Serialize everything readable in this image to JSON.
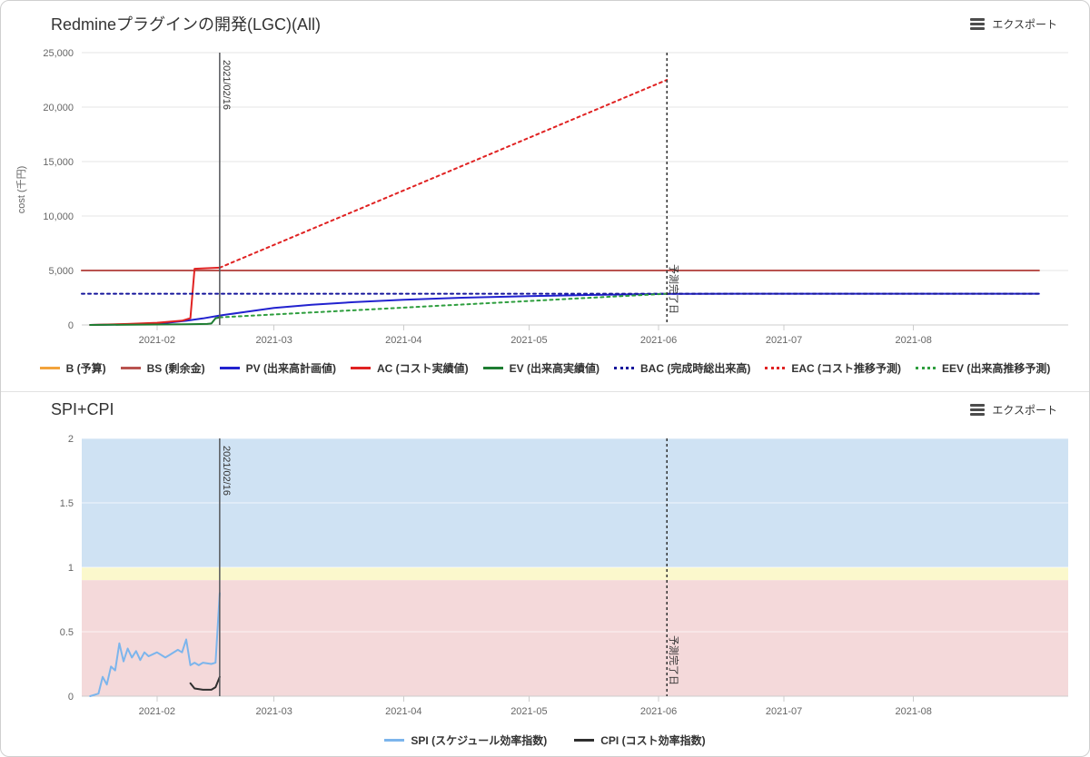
{
  "chart_data": [
    {
      "type": "line",
      "title": "Redmineプラグインの開発(LGC)(All)",
      "export_label": "エクスポート",
      "ylabel": "cost (千円)",
      "ylim": [
        0,
        25000
      ],
      "yticks": [
        {
          "v": 0,
          "label": "0"
        },
        {
          "v": 5000,
          "label": "5,000"
        },
        {
          "v": 10000,
          "label": "10,000"
        },
        {
          "v": 15000,
          "label": "15,000"
        },
        {
          "v": 20000,
          "label": "20,000"
        },
        {
          "v": 25000,
          "label": "25,000"
        }
      ],
      "xlim": [
        "2021-01-14",
        "2021-09-07"
      ],
      "xticks": [
        {
          "d": "2021-02-01",
          "label": "2021-02"
        },
        {
          "d": "2021-03-01",
          "label": "2021-03"
        },
        {
          "d": "2021-04-01",
          "label": "2021-04"
        },
        {
          "d": "2021-05-01",
          "label": "2021-05"
        },
        {
          "d": "2021-06-01",
          "label": "2021-06"
        },
        {
          "d": "2021-07-01",
          "label": "2021-07"
        },
        {
          "d": "2021-08-01",
          "label": "2021-08"
        }
      ],
      "plot_lines": [
        {
          "d": "2021-02-16",
          "label": "2021/02/16",
          "dash": "solid",
          "color": "#55575a",
          "label_anchor": "top"
        },
        {
          "d": "2021-06-03",
          "label": "予測完了日",
          "dash": "dotted",
          "color": "#333333",
          "label_anchor": "bottom"
        }
      ],
      "series": [
        {
          "key": "b",
          "name": "B (予算)",
          "color": "#f2a33c",
          "dash": "solid",
          "points": [
            [
              "2021-01-14",
              5000
            ],
            [
              "2021-08-31",
              5000
            ]
          ]
        },
        {
          "key": "bs",
          "name": "BS (剰余金)",
          "color": "#b9534f",
          "dash": "solid",
          "points": [
            [
              "2021-01-14",
              5000
            ],
            [
              "2021-08-31",
              5000
            ]
          ]
        },
        {
          "key": "pv",
          "name": "PV (出来高計画値)",
          "color": "#2222cf",
          "dash": "solid",
          "points": [
            [
              "2021-01-16",
              0
            ],
            [
              "2021-01-22",
              30
            ],
            [
              "2021-02-01",
              110
            ],
            [
              "2021-02-08",
              380
            ],
            [
              "2021-02-12",
              600
            ],
            [
              "2021-02-16",
              870
            ],
            [
              "2021-02-22",
              1180
            ],
            [
              "2021-03-01",
              1560
            ],
            [
              "2021-03-10",
              1860
            ],
            [
              "2021-03-20",
              2090
            ],
            [
              "2021-04-01",
              2310
            ],
            [
              "2021-04-15",
              2500
            ],
            [
              "2021-05-01",
              2650
            ],
            [
              "2021-05-15",
              2750
            ],
            [
              "2021-06-03",
              2850
            ],
            [
              "2021-06-20",
              2865
            ],
            [
              "2021-08-31",
              2870
            ]
          ]
        },
        {
          "key": "ac",
          "name": "AC (コスト実績値)",
          "color": "#e02222",
          "dash": "solid",
          "points": [
            [
              "2021-01-16",
              0
            ],
            [
              "2021-01-25",
              90
            ],
            [
              "2021-02-01",
              200
            ],
            [
              "2021-02-07",
              390
            ],
            [
              "2021-02-09",
              620
            ],
            [
              "2021-02-10",
              5160
            ],
            [
              "2021-02-16",
              5260
            ]
          ]
        },
        {
          "key": "ev",
          "name": "EV (出来高実績値)",
          "color": "#1e7d32",
          "dash": "solid",
          "points": [
            [
              "2021-01-16",
              0
            ],
            [
              "2021-02-08",
              60
            ],
            [
              "2021-02-13",
              90
            ],
            [
              "2021-02-14",
              130
            ],
            [
              "2021-02-15",
              620
            ],
            [
              "2021-02-16",
              700
            ]
          ]
        },
        {
          "key": "bac",
          "name": "BAC (完成時総出来高)",
          "color": "#15159b",
          "dash": "dotted",
          "points": [
            [
              "2021-01-14",
              2870
            ],
            [
              "2021-08-31",
              2870
            ]
          ]
        },
        {
          "key": "eac",
          "name": "EAC (コスト推移予測)",
          "color": "#e02222",
          "dash": "dotted",
          "points": [
            [
              "2021-02-16",
              5260
            ],
            [
              "2021-06-03",
              22500
            ]
          ]
        },
        {
          "key": "eev",
          "name": "EEV (出来高推移予測)",
          "color": "#2e9e3e",
          "dash": "dotted",
          "points": [
            [
              "2021-02-16",
              700
            ],
            [
              "2021-06-03",
              2870
            ]
          ]
        }
      ]
    },
    {
      "type": "line",
      "title": "SPI+CPI",
      "export_label": "エクスポート",
      "ylabel": "",
      "ylim": [
        0,
        2
      ],
      "yticks": [
        {
          "v": 0,
          "label": "0"
        },
        {
          "v": 0.5,
          "label": "0.5"
        },
        {
          "v": 1,
          "label": "1"
        },
        {
          "v": 1.5,
          "label": "1.5"
        },
        {
          "v": 2,
          "label": "2"
        }
      ],
      "xlim": [
        "2021-01-14",
        "2021-09-07"
      ],
      "xticks": [
        {
          "d": "2021-02-01",
          "label": "2021-02"
        },
        {
          "d": "2021-03-01",
          "label": "2021-03"
        },
        {
          "d": "2021-04-01",
          "label": "2021-04"
        },
        {
          "d": "2021-05-01",
          "label": "2021-05"
        },
        {
          "d": "2021-06-01",
          "label": "2021-06"
        },
        {
          "d": "2021-07-01",
          "label": "2021-07"
        },
        {
          "d": "2021-08-01",
          "label": "2021-08"
        }
      ],
      "bands": [
        {
          "from": 1,
          "to": 2,
          "color": "#cfe2f3"
        },
        {
          "from": 0.9,
          "to": 1,
          "color": "#fbf8cc"
        },
        {
          "from": 0,
          "to": 0.9,
          "color": "#f4d9da"
        }
      ],
      "plot_lines": [
        {
          "d": "2021-02-16",
          "label": "2021/02/16",
          "dash": "solid",
          "color": "#55575a",
          "label_anchor": "top"
        },
        {
          "d": "2021-06-03",
          "label": "予測完了日",
          "dash": "dotted",
          "color": "#333333",
          "label_anchor": "bottom"
        }
      ],
      "series": [
        {
          "key": "spi",
          "name": "SPI (スケジュール効率指数)",
          "color": "#7cb5ec",
          "dash": "solid",
          "points": [
            [
              "2021-01-16",
              0.0
            ],
            [
              "2021-01-18",
              0.02
            ],
            [
              "2021-01-19",
              0.15
            ],
            [
              "2021-01-20",
              0.09
            ],
            [
              "2021-01-21",
              0.23
            ],
            [
              "2021-01-22",
              0.2
            ],
            [
              "2021-01-23",
              0.41
            ],
            [
              "2021-01-24",
              0.27
            ],
            [
              "2021-01-25",
              0.37
            ],
            [
              "2021-01-26",
              0.3
            ],
            [
              "2021-01-27",
              0.35
            ],
            [
              "2021-01-28",
              0.28
            ],
            [
              "2021-01-29",
              0.34
            ],
            [
              "2021-01-30",
              0.31
            ],
            [
              "2021-02-01",
              0.34
            ],
            [
              "2021-02-03",
              0.3
            ],
            [
              "2021-02-04",
              0.32
            ],
            [
              "2021-02-06",
              0.36
            ],
            [
              "2021-02-07",
              0.34
            ],
            [
              "2021-02-08",
              0.44
            ],
            [
              "2021-02-09",
              0.24
            ],
            [
              "2021-02-10",
              0.26
            ],
            [
              "2021-02-11",
              0.24
            ],
            [
              "2021-02-12",
              0.26
            ],
            [
              "2021-02-14",
              0.25
            ],
            [
              "2021-02-15",
              0.26
            ],
            [
              "2021-02-16",
              0.8
            ]
          ]
        },
        {
          "key": "cpi",
          "name": "CPI (コスト効率指数)",
          "color": "#2f2f2f",
          "dash": "solid",
          "points": [
            [
              "2021-02-09",
              0.1
            ],
            [
              "2021-02-10",
              0.06
            ],
            [
              "2021-02-12",
              0.05
            ],
            [
              "2021-02-14",
              0.05
            ],
            [
              "2021-02-15",
              0.07
            ],
            [
              "2021-02-16",
              0.15
            ]
          ]
        }
      ]
    }
  ]
}
